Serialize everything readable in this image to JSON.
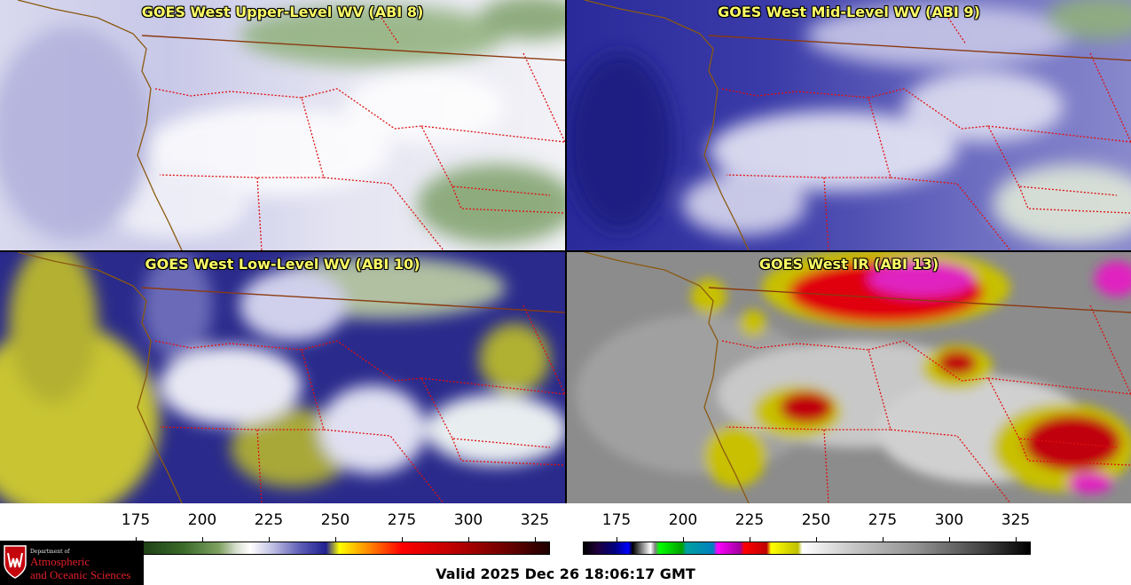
{
  "panels": [
    {
      "title": "GOES West Upper-Level WV (ABI 8)",
      "palette": "wv_upper"
    },
    {
      "title": "GOES West Mid-Level WV (ABI 9)",
      "palette": "wv_mid"
    },
    {
      "title": "GOES West Low-Level WV (ABI 10)",
      "palette": "wv_low"
    },
    {
      "title": "GOES West IR (ABI 13)",
      "palette": "ir"
    }
  ],
  "colorbars": [
    {
      "ticks": [
        "175",
        "200",
        "225",
        "250",
        "275",
        "300",
        "325"
      ]
    },
    {
      "ticks": [
        "175",
        "200",
        "225",
        "250",
        "275",
        "300",
        "325"
      ]
    }
  ],
  "logo": {
    "department": "Department of",
    "line1": "Atmospheric",
    "line2": "and Oceanic Sciences"
  },
  "valid_time": "Valid 2025 Dec 26 18:06:17 GMT",
  "colors": {
    "state_border": "#e01010",
    "coast": "#8a5a10",
    "title_text": "#ffff66"
  }
}
